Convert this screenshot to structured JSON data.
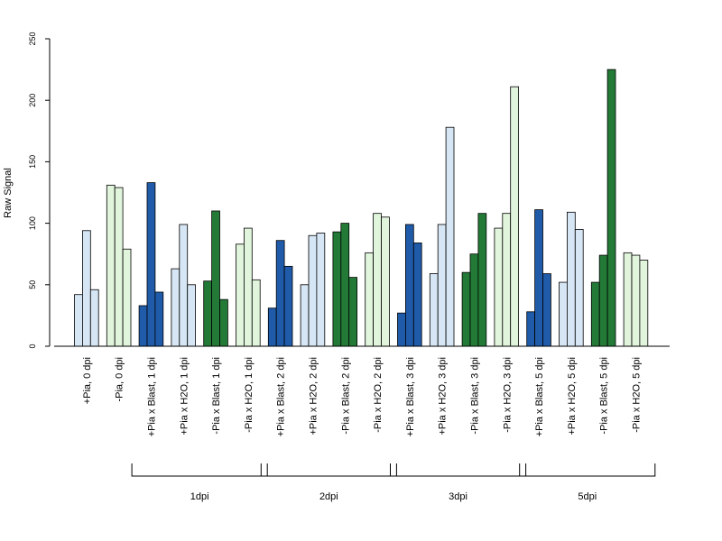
{
  "chart_data": {
    "type": "bar",
    "ylabel": "Raw Signal",
    "ylim": [
      0,
      250
    ],
    "yticks": [
      0,
      50,
      100,
      150,
      200,
      250
    ],
    "categories": [
      "+Pia, 0 dpi",
      "-Pia, 0 dpi",
      "+Pia x Blast, 1 dpi",
      "+Pia x H2O, 1 dpi",
      "-Pia x Blast, 1 dpi",
      "-Pia x H2O, 1 dpi",
      "+Pia x Blast, 2 dpi",
      "+Pia x H2O, 2 dpi",
      "-Pia x Blast, 2 dpi",
      "-Pia x H2O, 2 dpi",
      "+Pia x Blast, 3 dpi",
      "+Pia x H2O, 3 dpi",
      "-Pia x Blast, 3 dpi",
      "-Pia x H2O, 3 dpi",
      "+Pia x Blast, 5 dpi",
      "+Pia x H2O, 5 dpi",
      "-Pia x Blast, 5 dpi",
      "-Pia x H2O, 5 dpi"
    ],
    "category_colors": [
      "#d6e6f4",
      "#e1f4dc",
      "#1f5ba9",
      "#d6e6f4",
      "#237a37",
      "#e1f4dc",
      "#1f5ba9",
      "#d6e6f4",
      "#237a37",
      "#e1f4dc",
      "#1f5ba9",
      "#d6e6f4",
      "#237a37",
      "#e1f4dc",
      "#1f5ba9",
      "#d6e6f4",
      "#237a37",
      "#e1f4dc"
    ],
    "values": [
      [
        42,
        94,
        46
      ],
      [
        131,
        129,
        79
      ],
      [
        33,
        133,
        44
      ],
      [
        63,
        99,
        50
      ],
      [
        53,
        110,
        38
      ],
      [
        83,
        96,
        54
      ],
      [
        31,
        86,
        65
      ],
      [
        50,
        90,
        92
      ],
      [
        93,
        100,
        56
      ],
      [
        76,
        108,
        105
      ],
      [
        27,
        99,
        84
      ],
      [
        59,
        99,
        178
      ],
      [
        60,
        75,
        108
      ],
      [
        96,
        108,
        211
      ],
      [
        28,
        111,
        59
      ],
      [
        52,
        109,
        95
      ],
      [
        52,
        74,
        225
      ],
      [
        76,
        74,
        70
      ]
    ],
    "groups": [
      {
        "label": "1dpi",
        "from": 2,
        "to": 5
      },
      {
        "label": "2dpi",
        "from": 6,
        "to": 9
      },
      {
        "label": "3dpi",
        "from": 10,
        "to": 13
      },
      {
        "label": "5dpi",
        "from": 14,
        "to": 17
      }
    ],
    "grid": false,
    "legend": "none"
  }
}
